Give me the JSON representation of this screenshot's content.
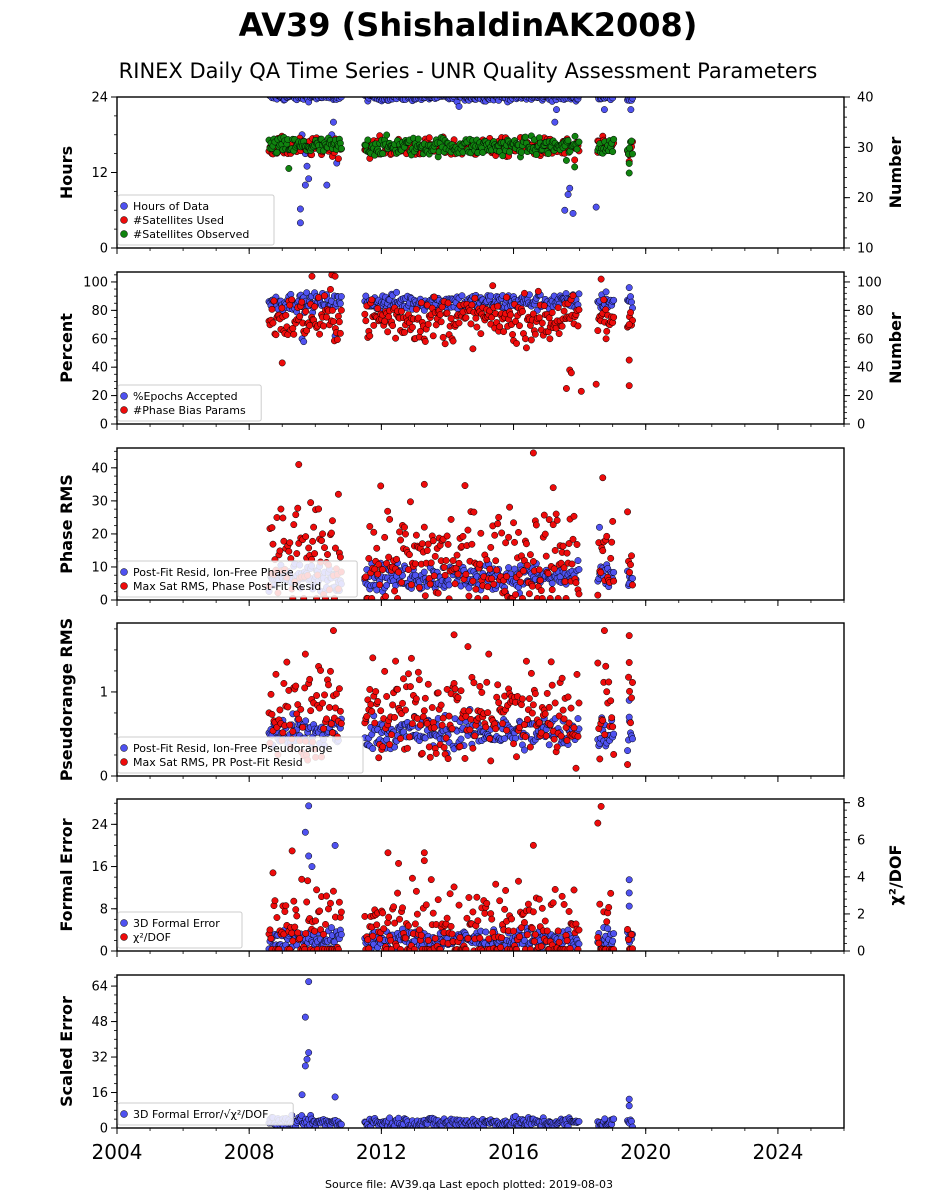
{
  "title": "AV39 (ShishaldinAK2008)",
  "subtitle": "RINEX Daily QA Time Series - UNR Quality Assessment Parameters",
  "footer": "Source file: AV39.qa Last epoch plotted: 2019-08-03",
  "colors": {
    "blue": "#4f52f0",
    "red": "#ee0b0b",
    "green": "#10830f",
    "edge": "#000000"
  },
  "chart_data": [
    {
      "type": "scatter",
      "panel": 1,
      "ylabel": "Hours",
      "ylabel_right": "Number",
      "xlim": [
        2004,
        2026
      ],
      "ylim": [
        0,
        24
      ],
      "yticks": [
        0,
        12,
        24
      ],
      "ylim_right": [
        10,
        40
      ],
      "yticks_right": [
        10,
        20,
        30,
        40
      ],
      "legend_position": "lower-left",
      "series": [
        {
          "name": "Hours of Data",
          "color": "blue",
          "axis": "left",
          "base": 24,
          "spread": 0.3,
          "segments": [
            [
              2008.6,
              2010.8
            ],
            [
              2011.5,
              2018.0
            ],
            [
              2018.55,
              2019.05
            ],
            [
              2019.45,
              2019.6
            ]
          ],
          "outliers": [
            [
              2009.6,
              18
            ],
            [
              2009.7,
              15
            ],
            [
              2009.75,
              13
            ],
            [
              2009.8,
              11
            ],
            [
              2009.7,
              10
            ],
            [
              2009.55,
              6.2
            ],
            [
              2009.55,
              4
            ],
            [
              2010.35,
              10
            ],
            [
              2010.65,
              13.5
            ],
            [
              2010.55,
              20
            ],
            [
              2010.5,
              18
            ],
            [
              2014.35,
              22.5
            ],
            [
              2017.25,
              20
            ],
            [
              2017.3,
              22
            ],
            [
              2017.55,
              6
            ],
            [
              2017.65,
              8.5
            ],
            [
              2017.7,
              9.5
            ],
            [
              2017.8,
              5.5
            ],
            [
              2018.5,
              6.5
            ],
            [
              2018.75,
              22
            ],
            [
              2019.55,
              22
            ]
          ]
        },
        {
          "name": "#Satellites Used",
          "color": "red",
          "axis": "right",
          "base": 30,
          "spread": 0.9,
          "segments": [
            [
              2008.6,
              2010.8
            ],
            [
              2011.5,
              2018.0
            ],
            [
              2018.55,
              2019.05
            ],
            [
              2019.45,
              2019.6
            ]
          ],
          "outliers": [
            [
              2017.55,
              28.8
            ],
            [
              2017.85,
              27.5
            ],
            [
              2018.55,
              29
            ],
            [
              2019.5,
              28.5
            ],
            [
              2019.5,
              27.2
            ]
          ]
        },
        {
          "name": "#Satellites Observed",
          "color": "green",
          "axis": "right",
          "base": 30.2,
          "spread": 0.9,
          "segments": [
            [
              2008.6,
              2010.8
            ],
            [
              2011.5,
              2018.0
            ],
            [
              2018.55,
              2019.05
            ],
            [
              2019.45,
              2019.6
            ]
          ],
          "outliers": [
            [
              2009.2,
              25.8
            ],
            [
              2017.6,
              27.4
            ],
            [
              2017.85,
              26.1
            ],
            [
              2019.5,
              24.9
            ],
            [
              2019.5,
              26.8
            ]
          ]
        }
      ]
    },
    {
      "type": "scatter",
      "panel": 2,
      "ylabel": "Percent",
      "ylabel_right": "Number",
      "xlim": [
        2004,
        2026
      ],
      "ylim": [
        0,
        107
      ],
      "yticks": [
        0,
        20,
        40,
        60,
        80,
        100
      ],
      "ylim_right": [
        0,
        107
      ],
      "yticks_right": [
        0,
        20,
        40,
        60,
        80,
        100
      ],
      "legend_position": "lower-left",
      "series": [
        {
          "name": "%Epochs Accepted",
          "color": "blue",
          "axis": "left",
          "base": 86,
          "spread": 3,
          "segments": [
            [
              2008.6,
              2010.8
            ],
            [
              2011.5,
              2018.0
            ],
            [
              2018.55,
              2019.05
            ],
            [
              2019.45,
              2019.6
            ]
          ],
          "outliers": [
            [
              2009.6,
              60
            ],
            [
              2009.65,
              58
            ],
            [
              2010.6,
              62
            ],
            [
              2018.8,
              93
            ],
            [
              2019.5,
              96
            ]
          ]
        },
        {
          "name": "#Phase Bias Params",
          "color": "red",
          "axis": "right",
          "base": 74,
          "spread": 8,
          "segments": [
            [
              2008.6,
              2010.8
            ],
            [
              2011.5,
              2018.0
            ],
            [
              2018.55,
              2019.05
            ],
            [
              2019.45,
              2019.6
            ]
          ],
          "outliers": [
            [
              2009.0,
              43
            ],
            [
              2009.9,
              104
            ],
            [
              2010.5,
              105
            ],
            [
              2010.6,
              104
            ],
            [
              2017.1,
              60
            ],
            [
              2017.7,
              38
            ],
            [
              2017.75,
              36
            ],
            [
              2017.6,
              25
            ],
            [
              2018.05,
              23
            ],
            [
              2018.5,
              28
            ],
            [
              2018.65,
              102
            ],
            [
              2018.8,
              60
            ],
            [
              2019.5,
              70
            ],
            [
              2019.5,
              45
            ],
            [
              2019.5,
              27
            ]
          ]
        }
      ]
    },
    {
      "type": "scatter",
      "panel": 3,
      "ylabel": "Phase RMS",
      "xlim": [
        2004,
        2026
      ],
      "ylim": [
        0,
        46
      ],
      "yticks": [
        0,
        10,
        20,
        30,
        40
      ],
      "legend_position": "lower-left",
      "series": [
        {
          "name": "Post-Fit Resid, Ion-Free Phase",
          "color": "blue",
          "axis": "left",
          "base": 7,
          "spread": 2,
          "segments": [
            [
              2008.6,
              2010.8
            ],
            [
              2011.5,
              2018.0
            ],
            [
              2018.55,
              2019.05
            ],
            [
              2019.45,
              2019.6
            ]
          ],
          "outliers": [
            [
              2018.6,
              22
            ],
            [
              2019.5,
              5
            ]
          ]
        },
        {
          "name": "Max Sat RMS, Phase Post-Fit Resid",
          "color": "red",
          "axis": "left",
          "base": 12,
          "spread": 8,
          "segments": [
            [
              2008.6,
              2010.8
            ],
            [
              2011.5,
              2018.0
            ],
            [
              2018.55,
              2019.05
            ],
            [
              2019.45,
              2019.6
            ]
          ],
          "outliers": [
            [
              2009.5,
              41
            ],
            [
              2016.6,
              44.5
            ],
            [
              2018.7,
              37
            ],
            [
              2013.3,
              35
            ],
            [
              2010.7,
              32
            ],
            [
              2017.2,
              34
            ]
          ]
        }
      ]
    },
    {
      "type": "scatter",
      "panel": 4,
      "ylabel": "Pseudorange RMS",
      "xlim": [
        2004,
        2026
      ],
      "ylim": [
        0,
        1.82
      ],
      "yticks": [
        0,
        1
      ],
      "legend_position": "lower-left",
      "series": [
        {
          "name": "Post-Fit Resid, Ion-Free Pseudorange",
          "color": "blue",
          "axis": "left",
          "base": 0.52,
          "spread": 0.1,
          "segments": [
            [
              2008.6,
              2010.8
            ],
            [
              2011.5,
              2018.0
            ],
            [
              2018.55,
              2019.05
            ],
            [
              2019.45,
              2019.6
            ]
          ],
          "outliers": [
            [
              2019.5,
              0.9
            ],
            [
              2019.5,
              0.7
            ]
          ]
        },
        {
          "name": "Max Sat RMS, PR Post-Fit Resid",
          "color": "red",
          "axis": "left",
          "base": 0.75,
          "spread": 0.3,
          "segments": [
            [
              2008.6,
              2010.8
            ],
            [
              2011.5,
              2018.0
            ],
            [
              2018.55,
              2019.05
            ],
            [
              2019.45,
              2019.6
            ]
          ],
          "outliers": [
            [
              2010.55,
              1.73
            ],
            [
              2014.2,
              1.68
            ],
            [
              2018.75,
              1.73
            ],
            [
              2019.5,
              1.67
            ],
            [
              2009.7,
              1.45
            ],
            [
              2019.5,
              1.35
            ]
          ]
        }
      ]
    },
    {
      "type": "scatter",
      "panel": 5,
      "ylabel": "Formal Error",
      "ylabel_right": "χ²/DOF",
      "xlim": [
        2004,
        2026
      ],
      "ylim": [
        0,
        28.8
      ],
      "yticks": [
        0,
        8,
        16,
        24
      ],
      "ylim_right": [
        0,
        8.2
      ],
      "yticks_right": [
        0,
        2,
        4,
        6,
        8
      ],
      "legend_position": "lower-left",
      "series": [
        {
          "name": "3D Formal Error",
          "color": "blue",
          "axis": "left",
          "base": 2.2,
          "spread": 1,
          "segments": [
            [
              2008.6,
              2010.8
            ],
            [
              2011.5,
              2018.0
            ],
            [
              2018.55,
              2019.05
            ],
            [
              2019.45,
              2019.6
            ]
          ],
          "outliers": [
            [
              2009.8,
              27.5
            ],
            [
              2009.7,
              22.5
            ],
            [
              2009.8,
              18
            ],
            [
              2009.9,
              16
            ],
            [
              2010.6,
              20
            ],
            [
              2019.5,
              13.5
            ],
            [
              2019.5,
              11
            ],
            [
              2019.5,
              8.5
            ]
          ]
        },
        {
          "name": "χ²/DOF",
          "color": "red",
          "axis": "right",
          "base": 1,
          "spread": 1.3,
          "segments": [
            [
              2008.6,
              2010.8
            ],
            [
              2011.5,
              2018.0
            ],
            [
              2018.55,
              2019.05
            ],
            [
              2019.45,
              2019.6
            ]
          ],
          "outliers": [
            [
              2018.65,
              7.8
            ],
            [
              2018.55,
              6.9
            ],
            [
              2009.3,
              5.4
            ],
            [
              2012.2,
              5.3
            ],
            [
              2013.3,
              5.3
            ],
            [
              2016.6,
              5.7
            ]
          ]
        }
      ]
    },
    {
      "type": "scatter",
      "panel": 6,
      "ylabel": "Scaled Error",
      "xlim": [
        2004,
        2026
      ],
      "ylim": [
        0,
        69
      ],
      "yticks": [
        0,
        16,
        32,
        48,
        64
      ],
      "xticks": [
        2004,
        2008,
        2012,
        2016,
        2020,
        2024
      ],
      "legend_position": "lower-left",
      "series": [
        {
          "name": "3D Formal Error/√χ²/DOF",
          "color": "blue",
          "axis": "left",
          "base": 2.5,
          "spread": 1.2,
          "segments": [
            [
              2008.6,
              2010.8
            ],
            [
              2011.5,
              2018.0
            ],
            [
              2018.55,
              2019.05
            ],
            [
              2019.45,
              2019.6
            ]
          ],
          "outliers": [
            [
              2009.8,
              66
            ],
            [
              2009.7,
              50
            ],
            [
              2009.8,
              34
            ],
            [
              2009.75,
              31
            ],
            [
              2009.7,
              28
            ],
            [
              2009.6,
              15
            ],
            [
              2010.6,
              14
            ],
            [
              2019.5,
              13
            ],
            [
              2019.5,
              10
            ]
          ]
        }
      ]
    }
  ]
}
